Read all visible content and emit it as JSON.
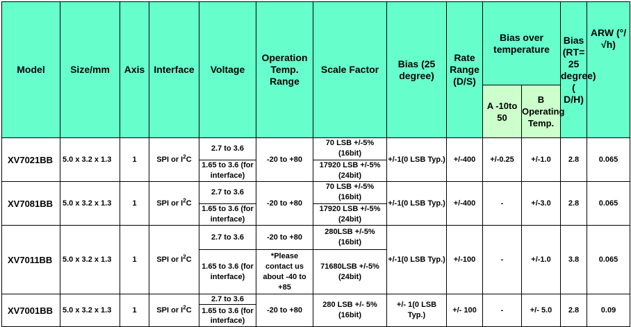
{
  "headers": {
    "model": "Model",
    "size": "Size/mm",
    "axis": "Axis",
    "interface": "Interface",
    "voltage": "Voltage",
    "op_temp": "Operation Temp. Range",
    "scale": "Scale Factor",
    "bias": "Bias (25 degree)",
    "rate": "Rate Range (D/S)",
    "bias_over": "Bias over temperature",
    "bias_a": "A -10to 50",
    "bias_b": "B Operating Temp.",
    "bias_rt": "Bias (RT= 25 degree)( D/H)",
    "arw": "ARW (°/√h)"
  },
  "rows": [
    {
      "model": "XV7021BB",
      "size": "5.0 x 3.2 x 1.3",
      "axis": "1",
      "interface_pre": "SPI or I",
      "interface_sup": "2",
      "interface_post": "C",
      "voltage_top": "2.7 to 3.6",
      "voltage_bottom": "1.65 to 3.6 (for interface)",
      "op_temp": "-20 to +80",
      "scale_top": "70 LSB +/-5% (16bit)",
      "scale_bottom": "17920 LSB +/-5% (24bit)",
      "bias": "+/-1(0 LSB Typ.)",
      "rate": "+/-400",
      "bias_a": "+/-0.25",
      "bias_b": "+/-1.0",
      "bias_rt": "2.8",
      "arw": "0.065"
    },
    {
      "model": "XV7081BB",
      "size": "5.0 x 3.2 x 1.3",
      "axis": "1",
      "interface_pre": "SPI or I",
      "interface_sup": "2",
      "interface_post": "C",
      "voltage_top": "2.7 to 3.6",
      "voltage_bottom": "1.65 to 3.6 (for interface)",
      "op_temp": "-20 to +80",
      "scale_top": "70 LSB +/-5% (16bit)",
      "scale_bottom": "17920 LSB +/-5% (24bit)",
      "bias": "+/-1(0 LSB Typ.)",
      "rate": "+/-400",
      "bias_a": "-",
      "bias_b": "+/-3.0",
      "bias_rt": "2.8",
      "arw": "0.065"
    },
    {
      "model": "XV7011BB",
      "size": "5.0 x 3.2 x 1.3",
      "axis": "1",
      "interface_pre": "SPI or I",
      "interface_sup": "2",
      "interface_post": "C",
      "voltage_top": "2.7 to 3.6",
      "voltage_bottom": "1.65 to 3.6 (for interface)",
      "op_temp_top": "-20 to +80",
      "op_temp_bottom": "*Please contact us about -40 to +85",
      "scale_top": "280LSB +/-5% (16bit)",
      "scale_bottom": "71680LSB +/-5% (24bit)",
      "bias": "+/-1(0 LSB Typ.)",
      "rate": "+/-100",
      "bias_a": "-",
      "bias_b": "+/-1.0",
      "bias_rt": "3.8",
      "arw": "0.065"
    },
    {
      "model": "XV7001BB",
      "size": "5.0 x 3.2 x 1.3",
      "axis": "1",
      "interface_pre": "SPI or I",
      "interface_sup": "2",
      "interface_post": "C",
      "voltage_top": "2.7 to 3.6",
      "voltage_bottom": "1.65 to 3.6 (for interface)",
      "op_temp": "-20 to +80",
      "scale": "280 LSB +/- 5% (16bit)",
      "bias": "+/- 1(0 LSB Typ.)",
      "rate": "+/- 100",
      "bias_a": "-",
      "bias_b": "+/- 5.0",
      "bias_rt": "2.8",
      "arw": "0.09"
    }
  ]
}
